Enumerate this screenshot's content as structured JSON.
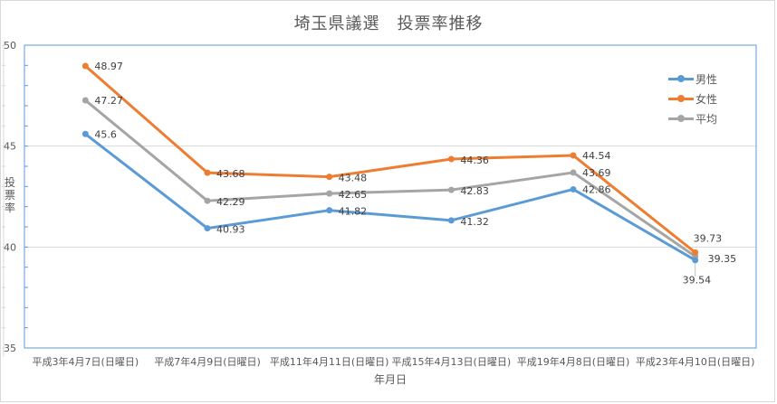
{
  "chart_data": {
    "type": "line",
    "title": "埼玉県議選　投票率推移",
    "xlabel": "年月日",
    "ylabel": "投票率",
    "ylim": [
      35,
      50
    ],
    "yticks": [
      35,
      40,
      45,
      50
    ],
    "grid": true,
    "legend_position": "right-top",
    "categories": [
      "平成3年4月7日(日曜日)",
      "平成7年4月9日(日曜日)",
      "平成11年4月11日(日曜日)",
      "平成15年4月13日(日曜日)",
      "平成19年4月8日(日曜日)",
      "平成23年4月10日(日曜日)"
    ],
    "series": [
      {
        "name": "男性",
        "color": "#5b9bd5",
        "values": [
          45.6,
          40.93,
          41.82,
          41.32,
          42.86,
          39.35
        ]
      },
      {
        "name": "女性",
        "color": "#ed7d31",
        "values": [
          48.97,
          43.68,
          43.48,
          44.36,
          44.54,
          39.73
        ]
      },
      {
        "name": "平均",
        "color": "#a5a5a5",
        "values": [
          47.27,
          42.29,
          42.65,
          42.83,
          43.69,
          39.54
        ]
      }
    ]
  }
}
